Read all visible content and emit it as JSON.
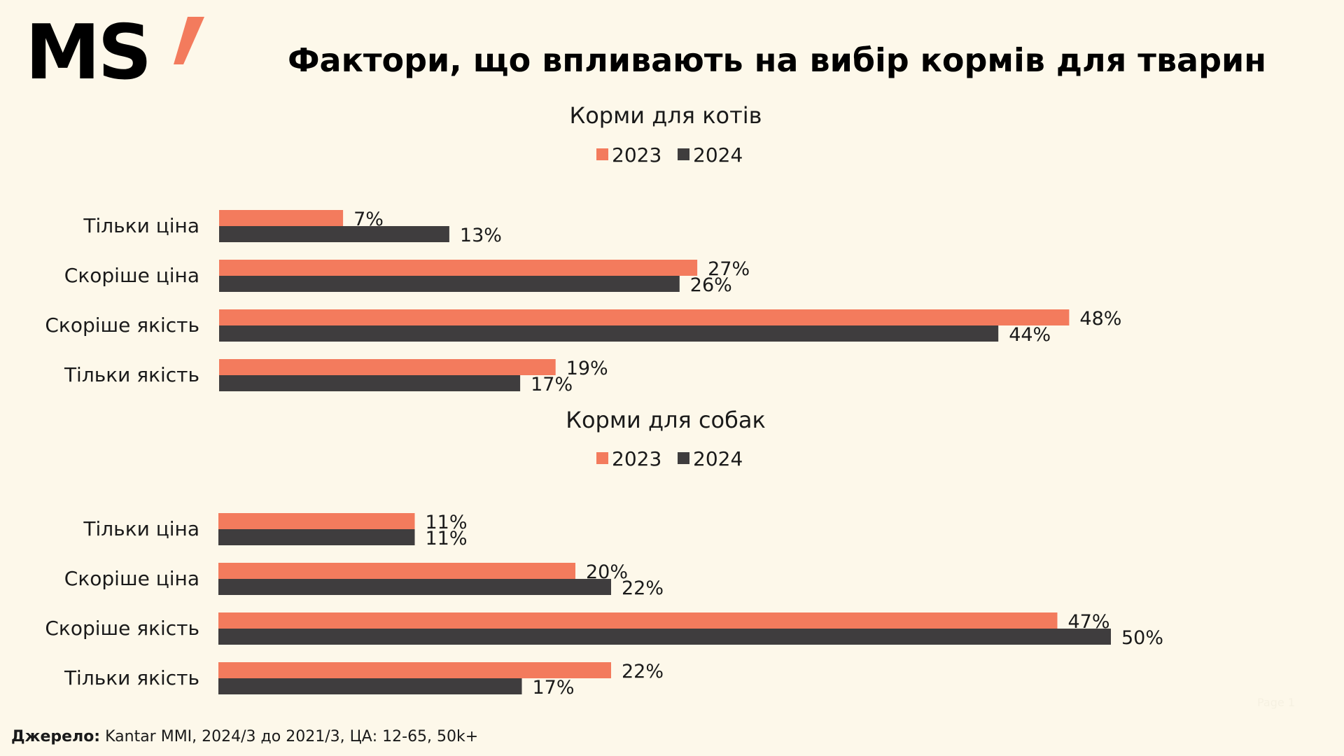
{
  "brand": {
    "logo_text": "MS",
    "accent": "#f37b5d"
  },
  "title": "Фактори, що впливають на вибір кормів для тварин",
  "source": {
    "label": "Джерело:",
    "text": "Kantar MMI, 2024/3 до 2021/3, ЦА: 12-65, 50k+"
  },
  "page_mark": "Page 1",
  "colors": {
    "s2023": "#f37b5d",
    "s2024": "#3f3d3e",
    "background": "#fdf8ea"
  },
  "chart_data": [
    {
      "type": "bar",
      "orientation": "horizontal",
      "title": "Корми для котів",
      "categories": [
        "Тільки ціна",
        "Скоріше ціна",
        "Скоріше якість",
        "Тільки якість"
      ],
      "series": [
        {
          "name": "2023",
          "values": [
            7,
            27,
            48,
            19
          ],
          "labels": [
            "7%",
            "27%",
            "48%",
            "19%"
          ]
        },
        {
          "name": "2024",
          "values": [
            13,
            26,
            44,
            17
          ],
          "labels": [
            "13%",
            "26%",
            "44%",
            "17%"
          ]
        }
      ],
      "legend": "top-center",
      "grid": false
    },
    {
      "type": "bar",
      "orientation": "horizontal",
      "title": "Корми для собак",
      "categories": [
        "Тільки ціна",
        "Скоріше ціна",
        "Скоріше якість",
        "Тільки якість"
      ],
      "series": [
        {
          "name": "2023",
          "values": [
            11,
            20,
            47,
            22
          ],
          "labels": [
            "11%",
            "20%",
            "47%",
            "22%"
          ]
        },
        {
          "name": "2024",
          "values": [
            11,
            22,
            50,
            17
          ],
          "labels": [
            "11%",
            "22%",
            "50%",
            "17%"
          ]
        }
      ],
      "legend": "top-center",
      "grid": false
    }
  ]
}
